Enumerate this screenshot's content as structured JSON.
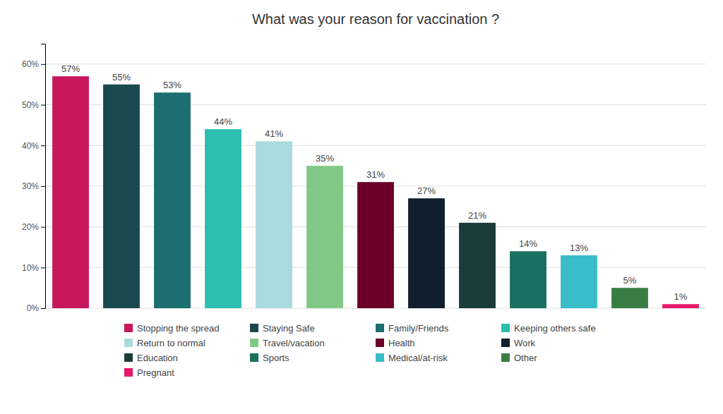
{
  "chart_data": {
    "type": "bar",
    "title": "What was your reason for vaccination ?",
    "categories": [
      "Stopping the spread",
      "Staying Safe",
      "Family/Friends",
      "Keeping others safe",
      "Return to normal",
      "Travel/vacation",
      "Health",
      "Work",
      "Education",
      "Sports",
      "Medical/at-risk",
      "Other",
      "Pregnant"
    ],
    "values": [
      57,
      55,
      53,
      44,
      41,
      35,
      31,
      27,
      21,
      14,
      13,
      5,
      1
    ],
    "value_labels": [
      "57%",
      "55%",
      "53%",
      "44%",
      "41%",
      "35%",
      "31%",
      "27%",
      "21%",
      "14%",
      "13%",
      "5%",
      "1%"
    ],
    "colors": [
      "#C8175D",
      "#1A4A50",
      "#1D6E70",
      "#2BBFB0",
      "#A8DADE",
      "#82C988",
      "#6B0028",
      "#0F1F2E",
      "#1A3C3A",
      "#1A7060",
      "#38BDC8",
      "#3A7D44",
      "#E8186A"
    ],
    "ylim": [
      0,
      65
    ],
    "yticks": [
      {
        "value": 0,
        "label": "0%"
      },
      {
        "value": 10,
        "label": "10%"
      },
      {
        "value": 20,
        "label": "20%"
      },
      {
        "value": 30,
        "label": "30%"
      },
      {
        "value": 40,
        "label": "40%"
      },
      {
        "value": 50,
        "label": "50%"
      },
      {
        "value": 60,
        "label": "60%"
      }
    ],
    "grid": true,
    "data_labels": true,
    "tick_labels": "y",
    "legend": "bottom"
  }
}
